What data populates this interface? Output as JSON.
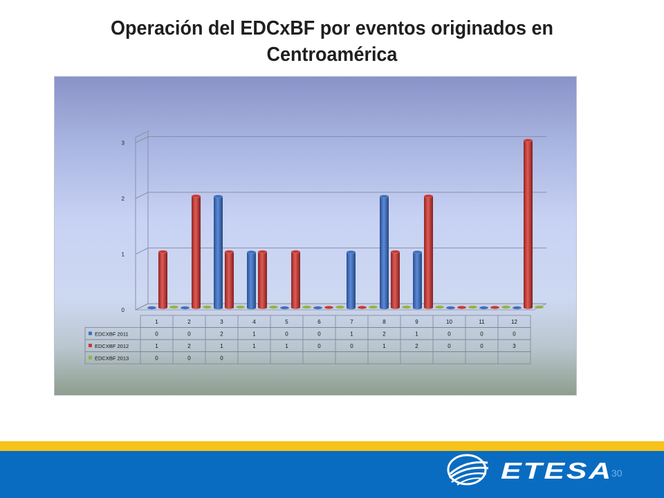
{
  "slide": {
    "title": "Operación del EDCxBF por eventos originados en Centroamérica",
    "page_number": "30",
    "logo_text": "ETESA"
  },
  "colors": {
    "series_2011": "#3e6fbf",
    "series_2012": "#c63a37",
    "series_2013": "#8db443",
    "footer_yellow": "#f7c21a",
    "footer_blue": "#0a6cc0"
  },
  "chart_data": {
    "type": "bar",
    "categories": [
      "1",
      "2",
      "3",
      "4",
      "5",
      "6",
      "7",
      "8",
      "9",
      "10",
      "11",
      "12"
    ],
    "series": [
      {
        "name": "EDCXBF 2011",
        "values": [
          0,
          0,
          2,
          1,
          0,
          0,
          1,
          2,
          1,
          0,
          0,
          0
        ],
        "table": [
          "0",
          "0",
          "2",
          "1",
          "0",
          "0",
          "1",
          "2",
          "1",
          "0",
          "0",
          "0"
        ]
      },
      {
        "name": "EDCXBF 2012",
        "values": [
          1,
          2,
          1,
          1,
          1,
          0,
          0,
          1,
          2,
          0,
          0,
          3
        ],
        "table": [
          "1",
          "2",
          "1",
          "1",
          "1",
          "0",
          "0",
          "1",
          "2",
          "0",
          "0",
          "3"
        ]
      },
      {
        "name": "EDCXBF 2013",
        "values": [
          0,
          0,
          0,
          0,
          0,
          0,
          0,
          0,
          0,
          0,
          0,
          0
        ],
        "table": [
          "0",
          "0",
          "0",
          "",
          "",
          "",
          "",
          "",
          "",
          "",
          "",
          ""
        ]
      }
    ],
    "yticks": [
      "0",
      "1",
      "2",
      "3"
    ],
    "ylim": [
      0,
      3
    ],
    "grid": true,
    "legend": "data-table"
  }
}
